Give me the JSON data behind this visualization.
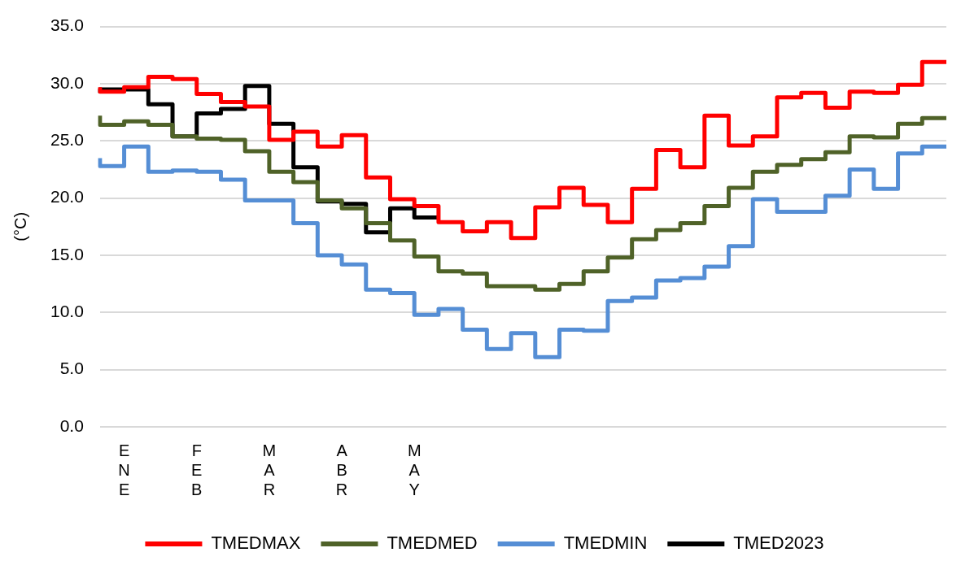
{
  "chart_data": {
    "type": "step",
    "ylabel": "(°C)",
    "categories": [
      null,
      "ENE",
      null,
      null,
      "FEB",
      null,
      null,
      "MAR",
      null,
      null,
      "ABR",
      null,
      null,
      "MAY",
      null,
      null,
      null,
      null,
      null,
      null,
      null,
      null,
      null,
      null,
      null,
      null,
      null,
      null,
      null,
      null,
      null,
      null,
      null,
      null,
      null,
      null
    ],
    "ylim": [
      0,
      35
    ],
    "yticks": [
      {
        "value": 0,
        "label": "0.0"
      },
      {
        "value": 5,
        "label": "5.0"
      },
      {
        "value": 10,
        "label": "10.0"
      },
      {
        "value": 15,
        "label": "15.0"
      },
      {
        "value": 20,
        "label": "20.0"
      },
      {
        "value": 25,
        "label": "25.0"
      },
      {
        "value": 30,
        "label": "30.0"
      },
      {
        "value": 35,
        "label": "35.0"
      }
    ],
    "grid": "y",
    "legend": "bottom",
    "marker": "none",
    "series": [
      {
        "name": "TMEDMAX",
        "color": "#ff0000",
        "values": [
          29.7,
          29.3,
          29.7,
          30.6,
          30.4,
          29.1,
          28.4,
          28.0,
          25.1,
          25.8,
          24.5,
          25.5,
          21.8,
          19.9,
          19.3,
          17.9,
          17.1,
          17.9,
          16.5,
          19.2,
          20.9,
          19.4,
          17.9,
          20.8,
          24.2,
          22.7,
          27.2,
          24.6,
          25.4,
          28.8,
          29.2,
          27.9,
          29.3,
          29.2,
          29.9,
          31.9
        ]
      },
      {
        "name": "TMEDMED",
        "color": "#4f6228",
        "values": [
          27.2,
          26.4,
          26.7,
          26.4,
          25.4,
          25.2,
          25.1,
          24.1,
          22.3,
          21.4,
          19.8,
          19.1,
          17.8,
          16.3,
          14.9,
          13.6,
          13.4,
          12.3,
          12.3,
          12.0,
          12.5,
          13.6,
          14.8,
          16.4,
          17.2,
          17.8,
          19.3,
          20.9,
          22.3,
          22.9,
          23.4,
          24.0,
          25.4,
          25.3,
          26.5,
          27.0
        ]
      },
      {
        "name": "TMEDMIN",
        "color": "#558ed5",
        "values": [
          23.5,
          22.8,
          24.5,
          22.3,
          22.4,
          22.3,
          21.6,
          19.8,
          19.8,
          17.8,
          15.0,
          14.2,
          12.0,
          11.7,
          9.8,
          10.3,
          8.5,
          6.8,
          8.2,
          6.1,
          8.5,
          8.4,
          11.0,
          11.3,
          12.8,
          13.0,
          14.0,
          15.8,
          19.9,
          18.8,
          18.8,
          20.2,
          22.5,
          20.8,
          23.9,
          24.5
        ]
      },
      {
        "name": "TMED2023",
        "color": "#000000",
        "values": [
          29.2,
          29.5,
          29.5,
          28.2,
          25.4,
          27.4,
          27.8,
          29.8,
          26.5,
          22.7,
          19.7,
          19.5,
          17.0,
          19.1,
          18.3,
          null,
          null,
          null,
          null,
          null,
          null,
          null,
          null,
          null,
          null,
          null,
          null,
          null,
          null,
          null,
          null,
          null,
          null,
          null,
          null,
          null
        ]
      }
    ]
  }
}
